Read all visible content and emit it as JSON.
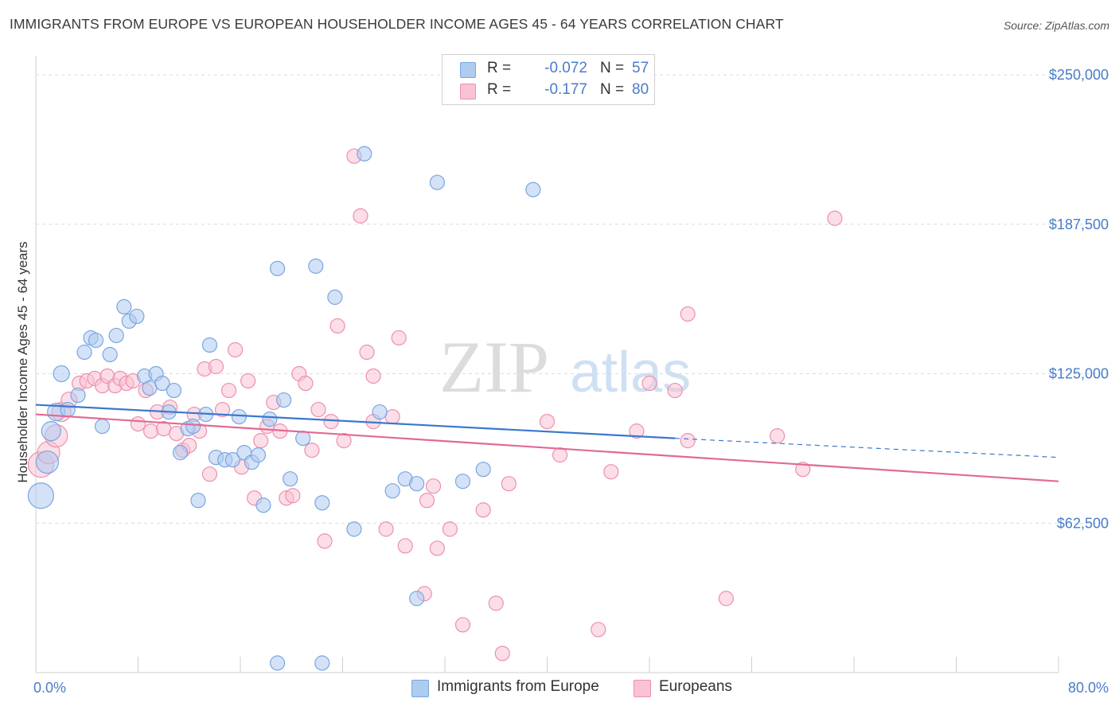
{
  "title": "IMMIGRANTS FROM EUROPE VS EUROPEAN HOUSEHOLDER INCOME AGES 45 - 64 YEARS CORRELATION CHART",
  "source": "Source: ZipAtlas.com",
  "watermark": {
    "zip": "ZIP",
    "atlas": "atlas"
  },
  "legend": {
    "rows": [
      {
        "r_label": "R =",
        "r_value": "-0.072",
        "n_label": "N =",
        "n_value": "57",
        "color": "#aecbf0",
        "stroke": "#7aa6e0"
      },
      {
        "r_label": "R =",
        "r_value": "-0.177",
        "n_label": "N =",
        "n_value": "80",
        "color": "#f8c3d3",
        "stroke": "#ee8fae"
      }
    ]
  },
  "bottom_legend": [
    {
      "label": "Immigrants from Europe",
      "color": "#aecbf0",
      "stroke": "#7aa6e0"
    },
    {
      "label": "Europeans",
      "color": "#f8c3d3",
      "stroke": "#ee8fae"
    }
  ],
  "chart_data": {
    "type": "scatter",
    "ylabel": "Householder Income Ages 45 - 64 years",
    "xlabel": "",
    "x_tick_labels": [
      "0.0%",
      "80.0%"
    ],
    "y_tick_labels": [
      "$62,500",
      "$125,000",
      "$187,500",
      "$250,000"
    ],
    "y_ticks": [
      62500,
      125000,
      187500,
      250000
    ],
    "xlim": [
      0,
      80
    ],
    "ylim": [
      0,
      258000
    ],
    "grid": "horizontal dashed",
    "legend_position": "top-center",
    "series": [
      {
        "name": "Immigrants from Europe",
        "color": "#aecbf0",
        "stroke": "#7aa6e0",
        "trend": {
          "x0": 0,
          "y0": 112000,
          "x1": 50,
          "y1": 98000,
          "x_dash_end": 80,
          "y_dash_end": 90000
        },
        "points": [
          [
            0.4,
            74000,
            16
          ],
          [
            0.9,
            88000,
            14
          ],
          [
            1.2,
            101000,
            12
          ],
          [
            1.6,
            109000,
            11
          ],
          [
            2.0,
            125000,
            10
          ],
          [
            2.5,
            110000,
            9
          ],
          [
            3.3,
            116000,
            9
          ],
          [
            3.8,
            134000,
            9
          ],
          [
            4.3,
            140000,
            9
          ],
          [
            4.7,
            139000,
            9
          ],
          [
            5.2,
            103000,
            9
          ],
          [
            5.8,
            133000,
            9
          ],
          [
            6.3,
            141000,
            9
          ],
          [
            6.9,
            153000,
            9
          ],
          [
            7.3,
            147000,
            9
          ],
          [
            7.9,
            149000,
            9
          ],
          [
            8.5,
            124000,
            9
          ],
          [
            8.9,
            119000,
            9
          ],
          [
            9.4,
            125000,
            9
          ],
          [
            9.9,
            121000,
            9
          ],
          [
            10.4,
            109000,
            9
          ],
          [
            10.8,
            118000,
            9
          ],
          [
            11.3,
            92000,
            9
          ],
          [
            11.9,
            102000,
            9
          ],
          [
            12.3,
            103000,
            9
          ],
          [
            12.7,
            72000,
            9
          ],
          [
            13.3,
            108000,
            9
          ],
          [
            13.6,
            137000,
            9
          ],
          [
            14.1,
            90000,
            9
          ],
          [
            14.8,
            89000,
            9
          ],
          [
            15.4,
            89000,
            9
          ],
          [
            15.9,
            107000,
            9
          ],
          [
            16.3,
            92000,
            9
          ],
          [
            16.9,
            88000,
            9
          ],
          [
            17.4,
            91000,
            9
          ],
          [
            17.8,
            70000,
            9
          ],
          [
            18.3,
            106000,
            9
          ],
          [
            18.9,
            169000,
            9
          ],
          [
            19.4,
            114000,
            9
          ],
          [
            19.9,
            81000,
            9
          ],
          [
            20.9,
            98000,
            9
          ],
          [
            21.9,
            170000,
            9
          ],
          [
            22.4,
            71000,
            9
          ],
          [
            23.4,
            157000,
            9
          ],
          [
            24.9,
            60000,
            9
          ],
          [
            25.7,
            217000,
            9
          ],
          [
            26.9,
            109000,
            9
          ],
          [
            27.9,
            76000,
            9
          ],
          [
            28.9,
            81000,
            9
          ],
          [
            29.8,
            79000,
            9
          ],
          [
            29.8,
            31000,
            9
          ],
          [
            31.4,
            205000,
            9
          ],
          [
            33.4,
            80000,
            9
          ],
          [
            35.0,
            85000,
            9
          ],
          [
            38.9,
            202000,
            9
          ],
          [
            18.9,
            4000,
            9
          ],
          [
            22.4,
            4000,
            9
          ]
        ]
      },
      {
        "name": "Europeans",
        "color": "#f8c3d3",
        "stroke": "#ee8fae",
        "trend": {
          "x0": 0,
          "y0": 108000,
          "x1": 80,
          "y1": 80000
        },
        "points": [
          [
            0.4,
            87000,
            16
          ],
          [
            1.0,
            92000,
            14
          ],
          [
            1.6,
            99000,
            14
          ],
          [
            2.0,
            109000,
            12
          ],
          [
            2.6,
            114000,
            10
          ],
          [
            3.4,
            121000,
            9
          ],
          [
            4.0,
            122000,
            9
          ],
          [
            4.6,
            123000,
            9
          ],
          [
            5.2,
            120000,
            9
          ],
          [
            5.6,
            124000,
            9
          ],
          [
            6.2,
            120000,
            9
          ],
          [
            6.6,
            123000,
            9
          ],
          [
            7.1,
            121000,
            9
          ],
          [
            7.6,
            122000,
            9
          ],
          [
            8.0,
            104000,
            9
          ],
          [
            8.6,
            118000,
            9
          ],
          [
            9.0,
            101000,
            9
          ],
          [
            9.5,
            109000,
            9
          ],
          [
            10.0,
            102000,
            9
          ],
          [
            10.5,
            111000,
            9
          ],
          [
            11.0,
            100000,
            9
          ],
          [
            11.5,
            93000,
            9
          ],
          [
            12.0,
            95000,
            9
          ],
          [
            12.4,
            108000,
            9
          ],
          [
            12.8,
            101000,
            9
          ],
          [
            13.2,
            127000,
            9
          ],
          [
            13.6,
            83000,
            9
          ],
          [
            14.1,
            128000,
            9
          ],
          [
            14.6,
            110000,
            9
          ],
          [
            15.1,
            118000,
            9
          ],
          [
            15.6,
            135000,
            9
          ],
          [
            16.1,
            86000,
            9
          ],
          [
            16.6,
            122000,
            9
          ],
          [
            17.1,
            73000,
            9
          ],
          [
            17.6,
            97000,
            9
          ],
          [
            18.1,
            103000,
            9
          ],
          [
            18.6,
            113000,
            9
          ],
          [
            19.1,
            101000,
            9
          ],
          [
            19.6,
            73000,
            9
          ],
          [
            20.1,
            74000,
            9
          ],
          [
            20.6,
            125000,
            9
          ],
          [
            21.1,
            121000,
            9
          ],
          [
            21.6,
            93000,
            9
          ],
          [
            22.1,
            110000,
            9
          ],
          [
            22.6,
            55000,
            9
          ],
          [
            23.1,
            105000,
            9
          ],
          [
            23.6,
            145000,
            9
          ],
          [
            24.1,
            97000,
            9
          ],
          [
            24.9,
            216000,
            9
          ],
          [
            25.4,
            191000,
            9
          ],
          [
            25.9,
            134000,
            9
          ],
          [
            26.4,
            124000,
            9
          ],
          [
            27.4,
            60000,
            9
          ],
          [
            27.9,
            107000,
            9
          ],
          [
            28.4,
            140000,
            9
          ],
          [
            28.9,
            53000,
            9
          ],
          [
            30.4,
            33000,
            9
          ],
          [
            30.6,
            72000,
            9
          ],
          [
            31.1,
            78000,
            9
          ],
          [
            31.4,
            52000,
            9
          ],
          [
            32.4,
            60000,
            9
          ],
          [
            33.4,
            20000,
            9
          ],
          [
            35.0,
            68000,
            9
          ],
          [
            36.0,
            29000,
            9
          ],
          [
            36.5,
            8000,
            9
          ],
          [
            37.0,
            79000,
            9
          ],
          [
            40.0,
            105000,
            9
          ],
          [
            41.0,
            91000,
            9
          ],
          [
            44.0,
            18000,
            9
          ],
          [
            45.0,
            84000,
            9
          ],
          [
            47.0,
            101000,
            9
          ],
          [
            48.0,
            121000,
            9
          ],
          [
            50.0,
            118000,
            9
          ],
          [
            51.0,
            97000,
            9
          ],
          [
            51.0,
            150000,
            9
          ],
          [
            54.0,
            31000,
            9
          ],
          [
            58.0,
            99000,
            9
          ],
          [
            60.0,
            85000,
            9
          ],
          [
            62.5,
            190000,
            9
          ],
          [
            26.4,
            105000,
            9
          ]
        ]
      }
    ]
  }
}
